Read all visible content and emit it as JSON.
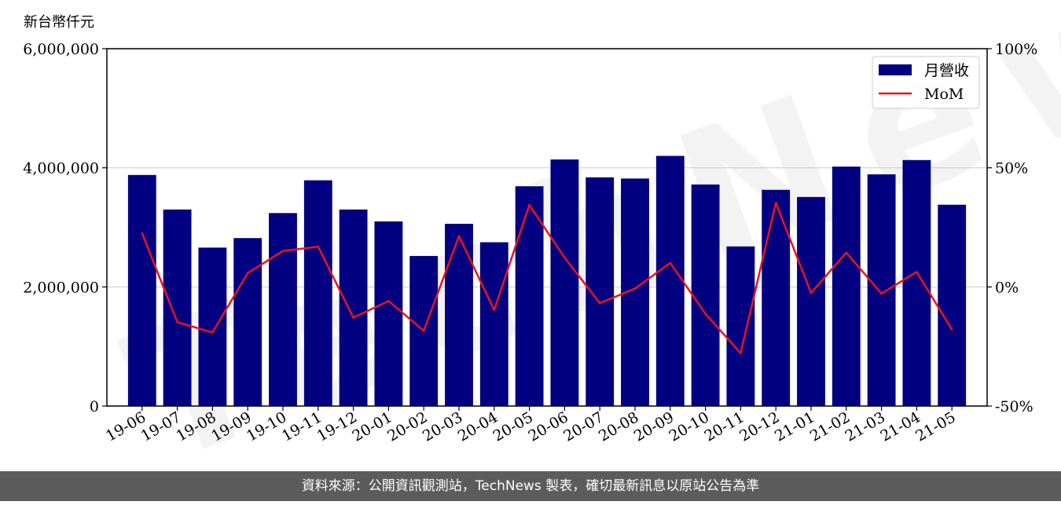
{
  "y_unit_label": "新台幣仟元",
  "footer_text": "資料來源：公開資訊觀測站，TechNews 製表，確切最新訊息以原站公告為準",
  "watermark_text": "TechNews",
  "colors": {
    "bar": "#000080",
    "line": "#e8141b",
    "grid": "#d0d0d0"
  },
  "chart_data": {
    "type": "bar",
    "categories": [
      "19-06",
      "19-07",
      "19-08",
      "19-09",
      "19-10",
      "19-11",
      "19-12",
      "20-01",
      "20-02",
      "20-03",
      "20-04",
      "20-05",
      "20-06",
      "20-07",
      "20-08",
      "20-09",
      "20-10",
      "20-11",
      "20-12",
      "21-01",
      "21-02",
      "21-03",
      "21-04",
      "21-05"
    ],
    "series": [
      {
        "name": "月營收",
        "type": "bar",
        "axis": "left",
        "values": [
          3880000,
          3300000,
          2660000,
          2820000,
          3240000,
          3790000,
          3300000,
          3100000,
          2520000,
          3060000,
          2750000,
          3690000,
          4140000,
          3840000,
          3820000,
          4200000,
          3720000,
          2680000,
          3630000,
          3510000,
          4020000,
          3890000,
          4130000,
          3380000
        ]
      },
      {
        "name": "MoM",
        "type": "line",
        "axis": "right",
        "values": [
          22.5,
          -14.8,
          -19.1,
          5.8,
          15.1,
          16.9,
          -12.9,
          -5.9,
          -18.4,
          21.3,
          -9.7,
          34.4,
          12.3,
          -6.8,
          -0.7,
          10.1,
          -11.3,
          -27.8,
          35.3,
          -2.5,
          14.4,
          -2.8,
          6.3,
          -17.9
        ]
      }
    ],
    "ylim_left": [
      0,
      6000000
    ],
    "yticks_left": [
      "0",
      "2,000,000",
      "4,000,000",
      "6,000,000"
    ],
    "ylim_right": [
      -50,
      100
    ],
    "yticks_right": [
      "-50%",
      "0%",
      "50%",
      "100%"
    ],
    "grid": "horizontal",
    "legend": {
      "placement": "top-right",
      "entries": [
        "月營收",
        "MoM"
      ]
    }
  }
}
